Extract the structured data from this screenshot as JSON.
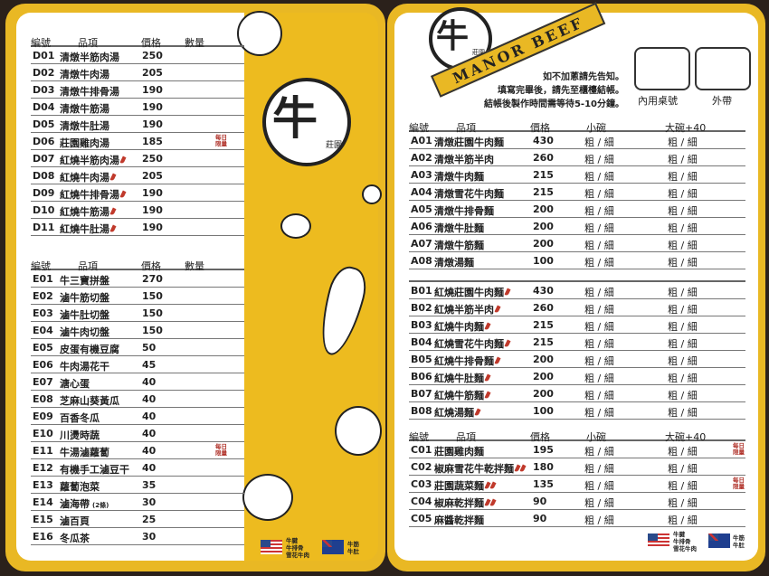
{
  "left": {
    "soups": {
      "headers": [
        "編號",
        "品項",
        "價格",
        "數量"
      ],
      "rows": [
        [
          "D01",
          "清燉半筋肉湯",
          "250",
          0,
          ""
        ],
        [
          "D02",
          "清燉牛肉湯",
          "205",
          0,
          ""
        ],
        [
          "D03",
          "清燉牛排骨湯",
          "190",
          0,
          ""
        ],
        [
          "D04",
          "清燉牛筋湯",
          "190",
          0,
          ""
        ],
        [
          "D05",
          "清燉牛肚湯",
          "190",
          0,
          ""
        ],
        [
          "D06",
          "莊園雞肉湯",
          "185",
          0,
          "每日\n限量"
        ],
        [
          "D07",
          "紅燒半筋肉湯",
          "250",
          1,
          ""
        ],
        [
          "D08",
          "紅燒牛肉湯",
          "205",
          1,
          ""
        ],
        [
          "D09",
          "紅燒牛排骨湯",
          "190",
          1,
          ""
        ],
        [
          "D10",
          "紅燒牛筋湯",
          "190",
          1,
          ""
        ],
        [
          "D11",
          "紅燒牛肚湯",
          "190",
          1,
          ""
        ]
      ]
    },
    "sides": {
      "headers": [
        "編號",
        "品項",
        "價格",
        "數量"
      ],
      "rows": [
        [
          "E01",
          "牛三寶拼盤",
          "270",
          0,
          ""
        ],
        [
          "E02",
          "滷牛筋切盤",
          "150",
          0,
          ""
        ],
        [
          "E03",
          "滷牛肚切盤",
          "150",
          0,
          ""
        ],
        [
          "E04",
          "滷牛肉切盤",
          "150",
          0,
          ""
        ],
        [
          "E05",
          "皮蛋有機豆腐",
          "50",
          0,
          ""
        ],
        [
          "E06",
          "牛肉湯花干",
          "45",
          0,
          ""
        ],
        [
          "E07",
          "溏心蛋",
          "40",
          0,
          ""
        ],
        [
          "E08",
          "芝麻山葵黃瓜",
          "40",
          0,
          ""
        ],
        [
          "E09",
          "百香冬瓜",
          "40",
          0,
          ""
        ],
        [
          "E10",
          "川燙時蔬",
          "40",
          0,
          ""
        ],
        [
          "E11",
          "牛湯滷蘿蔔",
          "40",
          0,
          "每日\n限量"
        ],
        [
          "E12",
          "有機手工滷豆干",
          "40",
          0,
          ""
        ],
        [
          "E13",
          "蘿蔔泡菜",
          "35",
          0,
          ""
        ],
        [
          "E14",
          "滷海帶",
          "30",
          0,
          "",
          "(2條)"
        ],
        [
          "E15",
          "滷百頁",
          "25",
          0,
          ""
        ],
        [
          "E16",
          "冬瓜茶",
          "30",
          0,
          ""
        ]
      ]
    },
    "logo_char": "牛",
    "logo_sub": "莊園",
    "flag_us_label": "牛腱\n牛排骨\n雪花牛肉",
    "flag_au_label": "牛筋\n牛肚"
  },
  "right": {
    "banner": "MANOR BEEF",
    "logo_char": "牛",
    "logo_sub": "莊園",
    "notes": [
      "如不加蔥請先告知。",
      "填寫完畢後，請先至櫃檯結帳。",
      "結帳後製作時間需等待5-10分鐘。"
    ],
    "dine_in": "內用桌號",
    "takeout": "外帶",
    "headers": [
      "編號",
      "品項",
      "價格",
      "小碗",
      "大碗+40"
    ],
    "noodle_option": "粗 / 細",
    "a_rows": [
      [
        "A01",
        "清燉莊園牛肉麵",
        "430",
        0,
        ""
      ],
      [
        "A02",
        "清燉半筋半肉",
        "260",
        0,
        ""
      ],
      [
        "A03",
        "清燉牛肉麵",
        "215",
        0,
        ""
      ],
      [
        "A04",
        "清燉雪花牛肉麵",
        "215",
        0,
        ""
      ],
      [
        "A05",
        "清燉牛排骨麵",
        "200",
        0,
        ""
      ],
      [
        "A06",
        "清燉牛肚麵",
        "200",
        0,
        ""
      ],
      [
        "A07",
        "清燉牛筋麵",
        "200",
        0,
        ""
      ],
      [
        "A08",
        "清燉湯麵",
        "100",
        0,
        ""
      ]
    ],
    "b_rows": [
      [
        "B01",
        "紅燒莊園牛肉麵",
        "430",
        1,
        ""
      ],
      [
        "B02",
        "紅燒半筋半肉",
        "260",
        1,
        ""
      ],
      [
        "B03",
        "紅燒牛肉麵",
        "215",
        1,
        ""
      ],
      [
        "B04",
        "紅燒雪花牛肉麵",
        "215",
        1,
        ""
      ],
      [
        "B05",
        "紅燒牛排骨麵",
        "200",
        1,
        ""
      ],
      [
        "B06",
        "紅燒牛肚麵",
        "200",
        1,
        ""
      ],
      [
        "B07",
        "紅燒牛筋麵",
        "200",
        1,
        ""
      ],
      [
        "B08",
        "紅燒湯麵",
        "100",
        1,
        ""
      ]
    ],
    "c_rows": [
      [
        "C01",
        "莊園雞肉麵",
        "195",
        0,
        "每日\n限量"
      ],
      [
        "C02",
        "椒麻雪花牛乾拌麵",
        "180",
        2,
        ""
      ],
      [
        "C03",
        "莊園蔬菜麵",
        "135",
        2,
        "每日\n限量"
      ],
      [
        "C04",
        "椒麻乾拌麵",
        "90",
        2,
        ""
      ],
      [
        "C05",
        "麻醬乾拌麵",
        "90",
        0,
        ""
      ]
    ],
    "flag_us_label": "牛腱\n牛排骨\n雪花牛肉",
    "flag_au_label": "牛筋\n牛肚"
  },
  "colors": {
    "yellow": "#e9b824",
    "chili": "#c0392b",
    "limited": "#b0322a",
    "background": "#2b211b"
  }
}
